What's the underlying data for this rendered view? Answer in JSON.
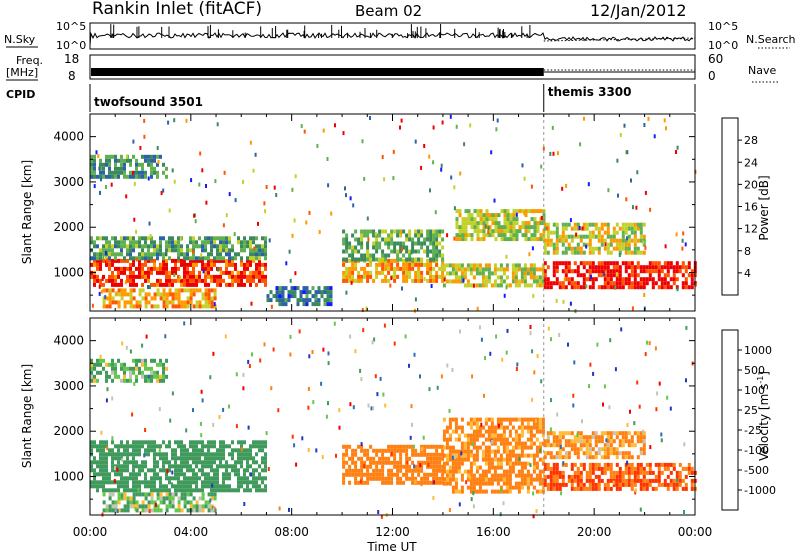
{
  "header": {
    "station": "Rankin Inlet (fitACF)",
    "beam": "Beam 02",
    "date": "12/Jan/2012"
  },
  "top_panels": {
    "nsky_label": "N.Sky",
    "nsky_ticks": [
      "10^5",
      "10^0"
    ],
    "nsky_right_ticks": [
      "10^5",
      "10^0"
    ],
    "nsearch_label": "N.Search",
    "freq_label_1": "Freq.",
    "freq_label_2": "[MHz]",
    "freq_ticks": [
      "18",
      "8"
    ],
    "nave_ticks": [
      "60",
      "0"
    ],
    "nave_label": "Nave",
    "cpid_label": "CPID",
    "cpid_modes": [
      {
        "name": "twofsound 3501",
        "start_hour": 0
      },
      {
        "name": "themis 3300",
        "start_hour": 18
      }
    ]
  },
  "colors": {
    "power_scale": [
      "#1919f5",
      "#2c62a8",
      "#3a8a5c",
      "#61b050",
      "#c3d12a",
      "#ff9900",
      "#ff5500",
      "#ee0000"
    ],
    "velocity_scale": [
      "#2535c0",
      "#2f6cb0",
      "#3f9a5c",
      "#63c74a",
      "#c4c4b4",
      "#ffbb33",
      "#ff7f11",
      "#ff3300",
      "#ee0000"
    ]
  },
  "chart_data": [
    {
      "type": "heatmap",
      "name": "power",
      "ylabel": "Slant Range [km]",
      "y_ticks": [
        1000,
        2000,
        3000,
        4000
      ],
      "ylim": [
        150,
        4500
      ],
      "x_ticks": [
        "00:00",
        "04:00",
        "08:00",
        "12:00",
        "16:00",
        "20:00",
        "00:00"
      ],
      "xlim_hours": [
        0,
        24
      ],
      "colorbar_label": "Power [dB]",
      "colorbar_ticks": [
        "4",
        "8",
        "12",
        "16",
        "20",
        "24",
        "28"
      ],
      "colorbar_range": [
        0,
        32
      ],
      "regions": [
        {
          "t": [
            0,
            7
          ],
          "r": [
            700,
            1300
          ],
          "level": 28
        },
        {
          "t": [
            0,
            7
          ],
          "r": [
            1300,
            1800
          ],
          "level": 12
        },
        {
          "t": [
            0.5,
            5
          ],
          "r": [
            250,
            650
          ],
          "level": 22
        },
        {
          "t": [
            0,
            3
          ],
          "r": [
            3100,
            3600
          ],
          "level": 10
        },
        {
          "t": [
            7,
            9.5
          ],
          "r": [
            300,
            700
          ],
          "level": 8
        },
        {
          "t": [
            10,
            14
          ],
          "r": [
            850,
            1300
          ],
          "level": 22
        },
        {
          "t": [
            10,
            14
          ],
          "r": [
            1300,
            1950
          ],
          "level": 13
        },
        {
          "t": [
            14,
            18
          ],
          "r": [
            700,
            1200
          ],
          "level": 18
        },
        {
          "t": [
            14.5,
            18
          ],
          "r": [
            1700,
            2400
          ],
          "level": 17
        },
        {
          "t": [
            18,
            24
          ],
          "r": [
            700,
            1250
          ],
          "level": 30
        },
        {
          "t": [
            18,
            22
          ],
          "r": [
            1400,
            2100
          ],
          "level": 18
        }
      ]
    },
    {
      "type": "heatmap",
      "name": "velocity",
      "ylabel": "Slant Range [km]",
      "y_ticks": [
        1000,
        2000,
        3000,
        4000
      ],
      "ylim": [
        150,
        4500
      ],
      "x_ticks": [
        "00:00",
        "04:00",
        "08:00",
        "12:00",
        "16:00",
        "20:00",
        "00:00"
      ],
      "xlim_hours": [
        0,
        24
      ],
      "xlabel": "Time UT",
      "colorbar_label": "Velocity [m s^-1]",
      "colorbar_ticks": [
        "1000",
        "500",
        "100",
        "25",
        "-25",
        "-100",
        "-500",
        "-1000"
      ],
      "colorbar_range": [
        -1000,
        1000
      ],
      "regions": [
        {
          "t": [
            0,
            7
          ],
          "r": [
            700,
            1800
          ],
          "level": 300
        },
        {
          "t": [
            0.5,
            5
          ],
          "r": [
            250,
            650
          ],
          "level": 80
        },
        {
          "t": [
            0,
            3
          ],
          "r": [
            3100,
            3600
          ],
          "level": 100
        },
        {
          "t": [
            10,
            14
          ],
          "r": [
            900,
            1700
          ],
          "level": -250
        },
        {
          "t": [
            14,
            18
          ],
          "r": [
            700,
            2300
          ],
          "level": -200
        },
        {
          "t": [
            18,
            24
          ],
          "r": [
            700,
            1300
          ],
          "level": -500
        },
        {
          "t": [
            18,
            22
          ],
          "r": [
            1400,
            2000
          ],
          "level": -150
        }
      ]
    }
  ]
}
